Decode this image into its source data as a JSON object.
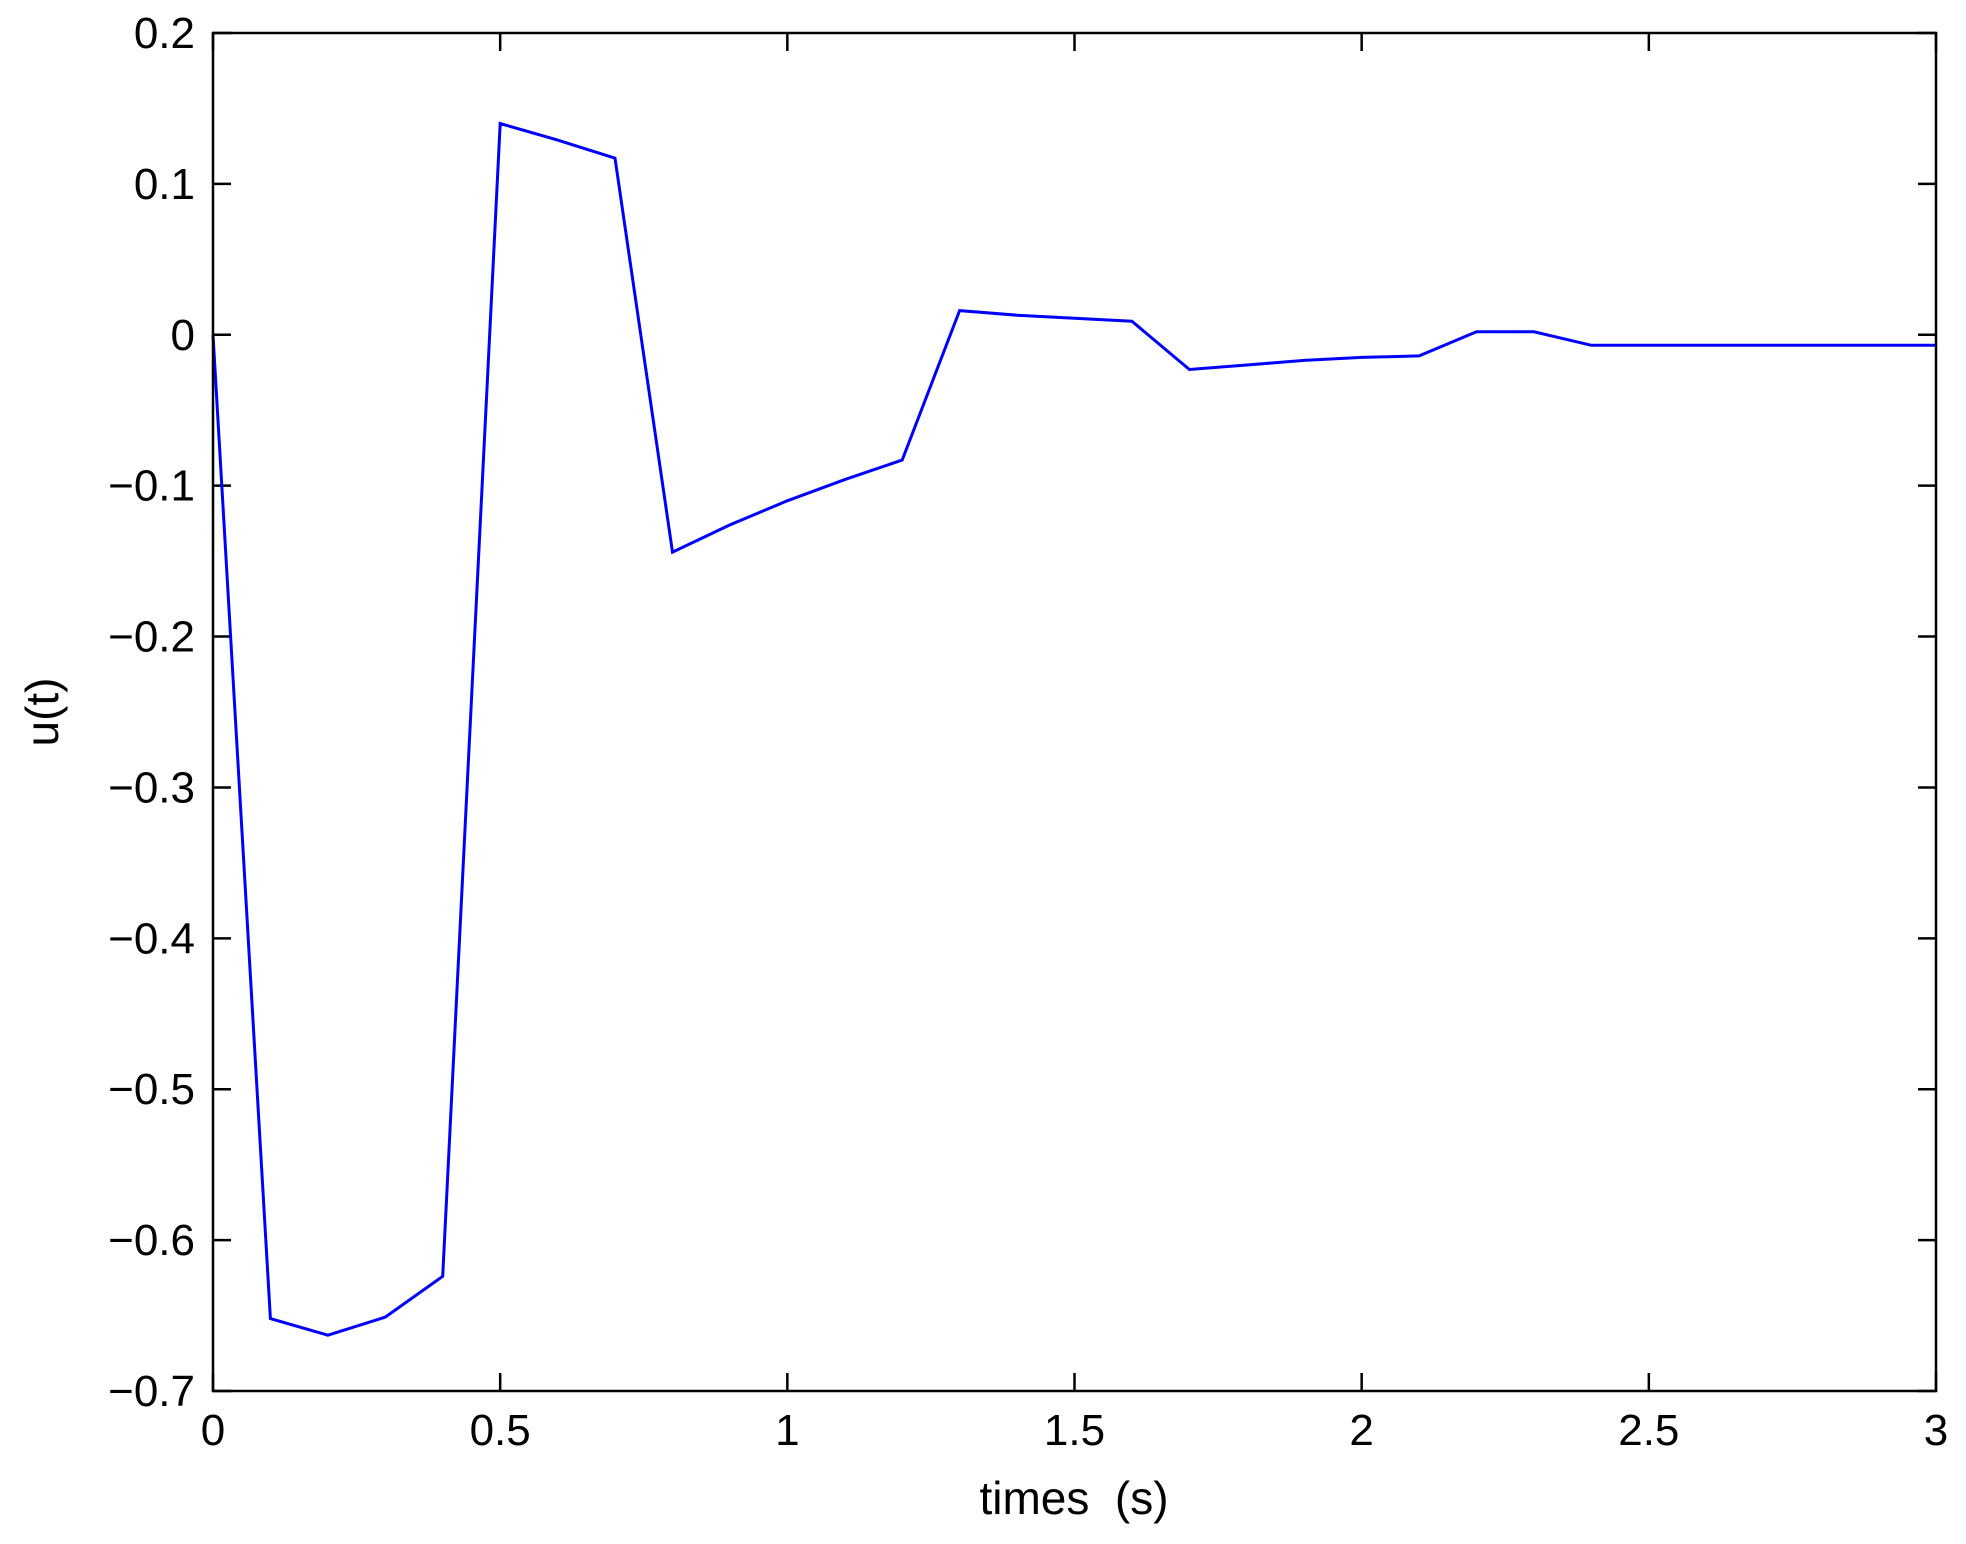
{
  "chart_data": {
    "type": "line",
    "title": "",
    "xlabel": "times  (s)",
    "ylabel": "u(t)",
    "xlim": [
      0,
      3
    ],
    "ylim": [
      -0.7,
      0.2
    ],
    "xticks": [
      0,
      0.5,
      1,
      1.5,
      2,
      2.5,
      3
    ],
    "xtick_labels": [
      "0",
      "0.5",
      "1",
      "1.5",
      "2",
      "2.5",
      "3"
    ],
    "yticks": [
      0.2,
      0.1,
      0,
      -0.1,
      -0.2,
      -0.3,
      -0.4,
      -0.5,
      -0.6,
      -0.7
    ],
    "ytick_labels": [
      "0.2",
      "0.1",
      "0",
      "−0.1",
      "−0.2",
      "−0.3",
      "−0.4",
      "−0.5",
      "−0.6",
      "−0.7"
    ],
    "grid": false,
    "series": [
      {
        "color": "#0000ff",
        "x": [
          0,
          0.1,
          0.2,
          0.3,
          0.4,
          0.5,
          0.6,
          0.7,
          0.8,
          0.9,
          1.0,
          1.1,
          1.2,
          1.3,
          1.4,
          1.5,
          1.6,
          1.7,
          1.8,
          1.9,
          2.0,
          2.1,
          2.2,
          2.3,
          2.4,
          2.5,
          2.6,
          2.7,
          2.8,
          2.9,
          3.0
        ],
        "y": [
          0.0,
          -0.652,
          -0.663,
          -0.651,
          -0.624,
          0.14,
          0.129,
          0.117,
          -0.144,
          -0.126,
          -0.11,
          -0.096,
          -0.083,
          0.016,
          0.013,
          0.011,
          0.009,
          -0.023,
          -0.02,
          -0.017,
          -0.015,
          -0.014,
          0.002,
          0.002,
          -0.007,
          -0.007,
          -0.007,
          -0.007,
          -0.007,
          -0.007,
          -0.007
        ]
      }
    ]
  }
}
